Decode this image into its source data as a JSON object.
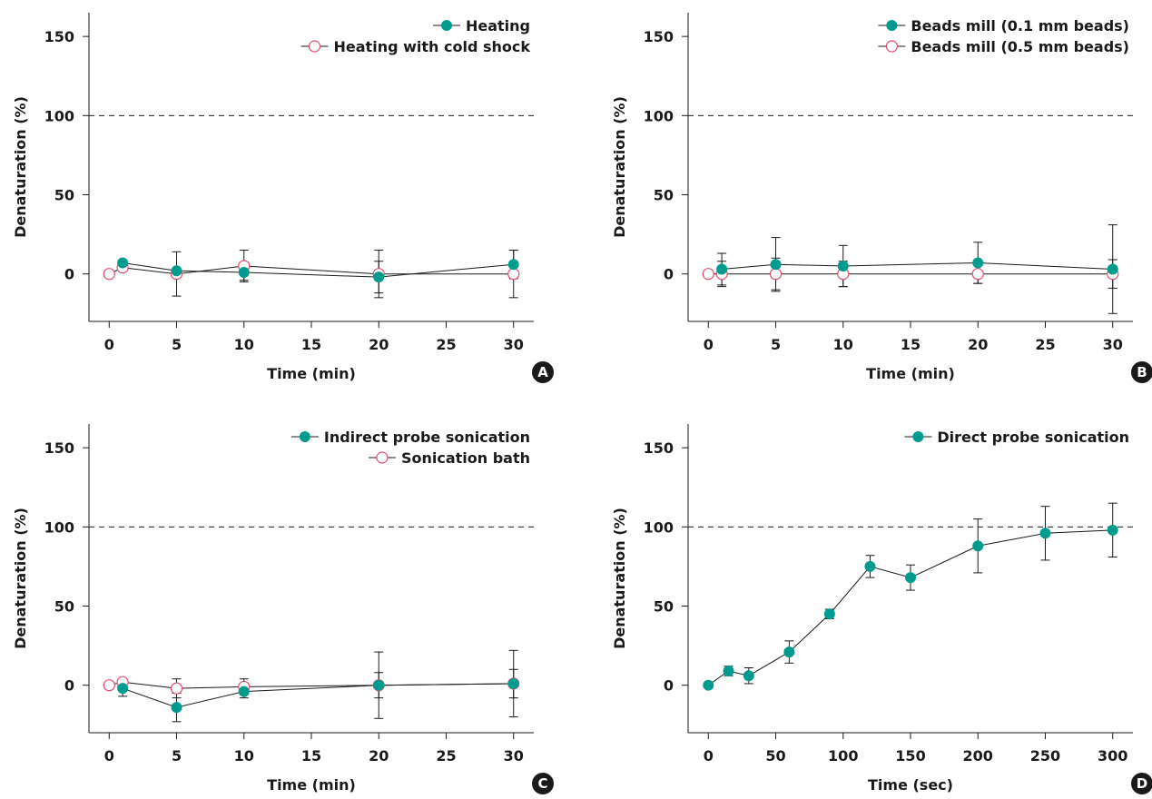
{
  "colors": {
    "filled": "#009b8f",
    "open_stroke": "#e0506b",
    "axis": "#1a1a1a"
  },
  "chart_data": [
    {
      "panel_label": "A",
      "type": "line",
      "xlabel": "Time (min)",
      "ylabel": "Denaturation (%)",
      "xlim": [
        -1.5,
        31.5
      ],
      "ylim": [
        -30,
        165
      ],
      "xticks": [
        0,
        5,
        10,
        15,
        20,
        25,
        30
      ],
      "yticks": [
        0,
        50,
        100,
        150
      ],
      "reference_line": 100,
      "legend_position": "top-right",
      "series": [
        {
          "name": "Heating",
          "marker": "filled",
          "x": [
            1,
            5,
            10,
            20,
            30
          ],
          "y": [
            7,
            2,
            1,
            -2,
            6
          ],
          "err": [
            0,
            0,
            5,
            10,
            9
          ]
        },
        {
          "name": "Heating with cold shock",
          "marker": "open",
          "x": [
            0,
            1,
            5,
            10,
            20,
            30
          ],
          "y": [
            0,
            4,
            0,
            5,
            0,
            0
          ],
          "err": [
            0,
            0,
            14,
            10,
            15,
            15
          ]
        }
      ]
    },
    {
      "panel_label": "B",
      "type": "line",
      "xlabel": "Time (min)",
      "ylabel": "Denaturation (%)",
      "xlim": [
        -1.5,
        31.5
      ],
      "ylim": [
        -30,
        165
      ],
      "xticks": [
        0,
        5,
        10,
        15,
        20,
        25,
        30
      ],
      "yticks": [
        0,
        50,
        100,
        150
      ],
      "reference_line": 100,
      "legend_position": "top-right",
      "series": [
        {
          "name": "Beads mill (0.1 mm beads)",
          "marker": "filled",
          "x": [
            1,
            5,
            10,
            20,
            30
          ],
          "y": [
            3,
            6,
            5,
            7,
            3
          ],
          "err": [
            10,
            17,
            13,
            13,
            28
          ]
        },
        {
          "name": "Beads mill (0.5 mm beads)",
          "marker": "open",
          "x": [
            0,
            1,
            5,
            10,
            20,
            30
          ],
          "y": [
            0,
            0,
            0,
            0,
            0,
            0
          ],
          "err": [
            0,
            8,
            10,
            8,
            6,
            9
          ]
        }
      ]
    },
    {
      "panel_label": "C",
      "type": "line",
      "xlabel": "Time (min)",
      "ylabel": "Denaturation (%)",
      "xlim": [
        -1.5,
        31.5
      ],
      "ylim": [
        -30,
        165
      ],
      "xticks": [
        0,
        5,
        10,
        15,
        20,
        25,
        30
      ],
      "yticks": [
        0,
        50,
        100,
        150
      ],
      "reference_line": 100,
      "legend_position": "top-right",
      "series": [
        {
          "name": "Indirect probe sonication",
          "marker": "filled",
          "x": [
            1,
            5,
            10,
            20,
            30
          ],
          "y": [
            -2,
            -14,
            -4,
            0,
            1
          ],
          "err": [
            5,
            9,
            4,
            8,
            9
          ]
        },
        {
          "name": "Sonication bath",
          "marker": "open",
          "x": [
            0,
            1,
            5,
            10,
            20,
            30
          ],
          "y": [
            0,
            2,
            -2,
            -1,
            0,
            1
          ],
          "err": [
            0,
            0,
            6,
            5,
            21,
            21
          ]
        }
      ]
    },
    {
      "panel_label": "D",
      "type": "line",
      "xlabel": "Time (sec)",
      "ylabel": "Denaturation (%)",
      "xlim": [
        -15,
        315
      ],
      "ylim": [
        -30,
        165
      ],
      "xticks": [
        0,
        50,
        100,
        150,
        200,
        250,
        300
      ],
      "yticks": [
        0,
        50,
        100,
        150
      ],
      "reference_line": 100,
      "legend_position": "top-right",
      "series": [
        {
          "name": "Direct probe sonication",
          "marker": "filled",
          "x": [
            0,
            15,
            30,
            60,
            90,
            120,
            150,
            200,
            250,
            300
          ],
          "y": [
            0,
            9,
            6,
            21,
            45,
            75,
            68,
            88,
            96,
            98
          ],
          "err": [
            0,
            3,
            5,
            7,
            3,
            7,
            8,
            17,
            17,
            17
          ]
        }
      ]
    }
  ]
}
